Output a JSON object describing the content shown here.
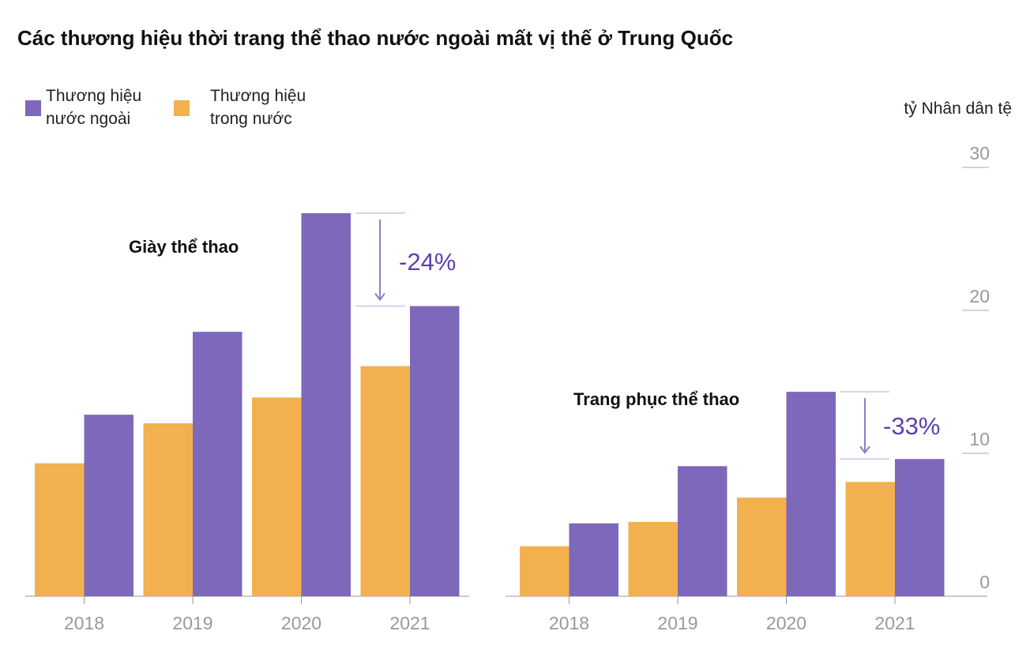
{
  "title": "Các thương hiệu thời trang thể thao nước ngoài mất vị thế ở Trung Quốc",
  "unit_label": "tỷ Nhân dân tệ",
  "legend": [
    {
      "line1": "Thương hiệu",
      "line2": "nước ngoài",
      "color": "#7d68bb"
    },
    {
      "line1": "Thương hiệu",
      "line2": "trong nước",
      "color": "#f2b04f"
    }
  ],
  "colors": {
    "foreign": "#7d68bb",
    "domestic": "#f2b04f",
    "annotation": "#5b41b0",
    "axis": "#999999"
  },
  "chart_data": [
    {
      "type": "bar",
      "title": "Giày thể thao",
      "categories": [
        "2018",
        "2019",
        "2020",
        "2021"
      ],
      "series": [
        {
          "name": "Thương hiệu trong nước",
          "values": [
            9.3,
            12.1,
            13.9,
            16.1
          ]
        },
        {
          "name": "Thương hiệu nước ngoài",
          "values": [
            12.7,
            18.5,
            26.8,
            20.3
          ]
        }
      ],
      "annotation": {
        "label": "-24%",
        "from": "2020",
        "to": "2021"
      },
      "ylim": [
        0,
        30
      ]
    },
    {
      "type": "bar",
      "title": "Trang phục thể thao",
      "categories": [
        "2018",
        "2019",
        "2020",
        "2021"
      ],
      "series": [
        {
          "name": "Thương hiệu trong nước",
          "values": [
            3.5,
            5.2,
            6.9,
            8.0
          ]
        },
        {
          "name": "Thương hiệu nước ngoài",
          "values": [
            5.1,
            9.1,
            14.3,
            9.6
          ]
        }
      ],
      "annotation": {
        "label": "-33%",
        "from": "2020",
        "to": "2021"
      },
      "ylim": [
        0,
        30
      ],
      "yticks": [
        "0",
        "10",
        "20",
        "30"
      ]
    }
  ]
}
